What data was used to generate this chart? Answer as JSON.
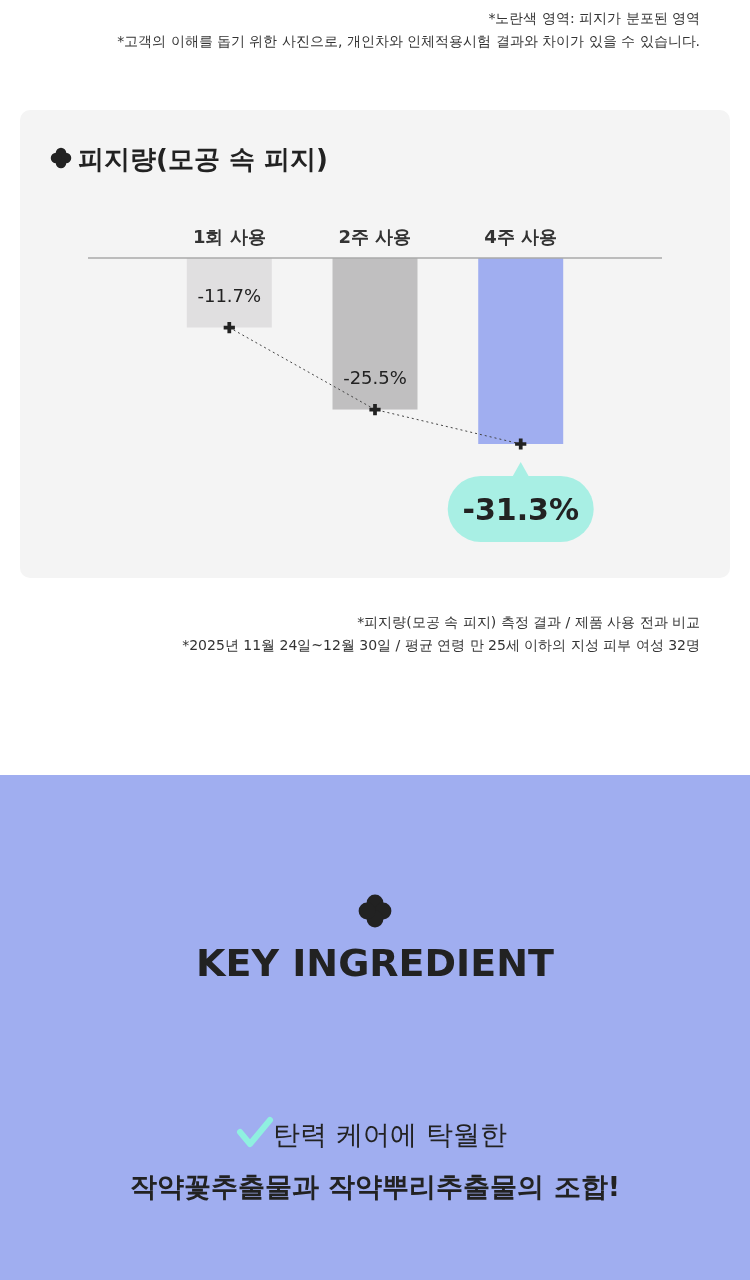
{
  "chart_data": {
    "type": "bar",
    "title": "피지량(모공 속 피지)",
    "categories": [
      "1회 사용",
      "2주 사용",
      "4주 사용"
    ],
    "series": [
      {
        "colors": [
          "#e0dfe0",
          "#c0bfc0",
          "#a0aef0"
        ],
        "values": [
          -11.7,
          -25.5,
          -31.3
        ],
        "value_labels": [
          "-11.7%",
          "-25.5%",
          "-31.3%"
        ]
      },
      {
        "type": "line",
        "color": "#444444",
        "values": [
          -11.7,
          -25.5,
          -31.3
        ],
        "value_labels": [
          null,
          null,
          null
        ]
      }
    ],
    "marker": "cross",
    "line_style": "dotted",
    "annotations": [
      "*노란색 영역: 피지가 분포된 영역",
      "*고객의 이해를 돕기 위한 사진으로, 개인차와 인체적용시험 결과와 차이가 있을 수 있습니다.",
      "*피지량(모공 속 피지) 측정 결과 / 제품 사용 전과 비교",
      "*2025년 11월 24일~12월 30일 / 평균 연령 만 25세 이하의 지성 피부 여성 32명",
      "KEY INGREDIENT",
      "탄력 케어에 탁월한",
      "작약꽃추출물과 작약뿌리추출물의 조합!"
    ]
  }
}
